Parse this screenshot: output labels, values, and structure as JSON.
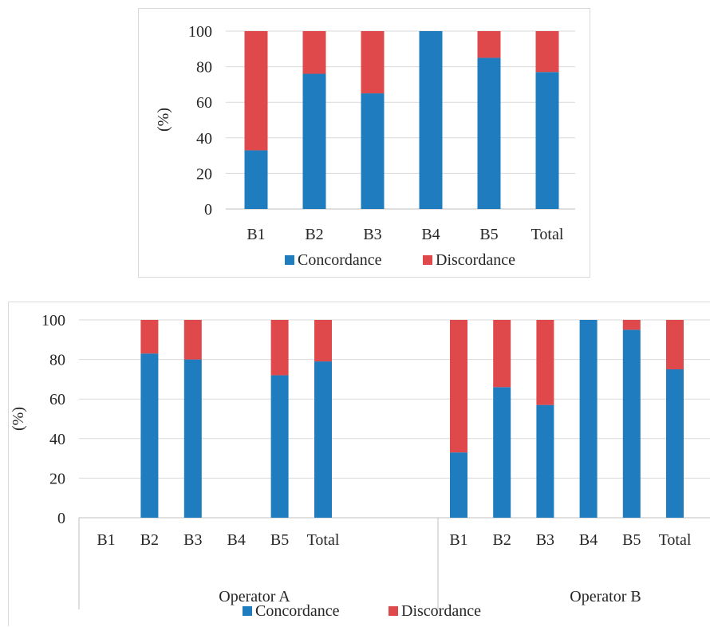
{
  "colors": {
    "concordance": "#1F7CBE",
    "discordance": "#E0494B",
    "grid": "#d9d9d9",
    "axis": "#bfbfbf"
  },
  "chart_data": [
    {
      "type": "bar",
      "stacked": true,
      "ylabel": "(%)",
      "ylim": [
        0,
        100
      ],
      "yticks": [
        0,
        20,
        40,
        60,
        80,
        100
      ],
      "grid": true,
      "legend": "bottom",
      "categories": [
        "B1",
        "B2",
        "B3",
        "B4",
        "B5",
        "Total"
      ],
      "series": [
        {
          "name": "Concordance",
          "values": [
            33,
            76,
            65,
            100,
            85,
            77
          ]
        },
        {
          "name": "Discordance",
          "values": [
            67,
            24,
            35,
            0,
            15,
            23
          ]
        }
      ]
    },
    {
      "type": "bar",
      "stacked": true,
      "ylabel": "(%)",
      "ylim": [
        0,
        100
      ],
      "yticks": [
        0,
        20,
        40,
        60,
        80,
        100
      ],
      "grid": true,
      "legend": "bottom",
      "groups": [
        {
          "label": "Operator A",
          "categories": [
            "B1",
            "B2",
            "B3",
            "B4",
            "B5",
            "Total"
          ]
        },
        {
          "label": "Operator B",
          "categories": [
            "B1",
            "B2",
            "B3",
            "B4",
            "B5",
            "Total"
          ]
        }
      ],
      "series": [
        {
          "name": "Concordance",
          "values": [
            0,
            83,
            80,
            0,
            72,
            79,
            33,
            66,
            57,
            100,
            95,
            75
          ]
        },
        {
          "name": "Discordance",
          "values": [
            0,
            17,
            20,
            0,
            28,
            21,
            67,
            34,
            43,
            0,
            5,
            25
          ]
        }
      ]
    }
  ]
}
